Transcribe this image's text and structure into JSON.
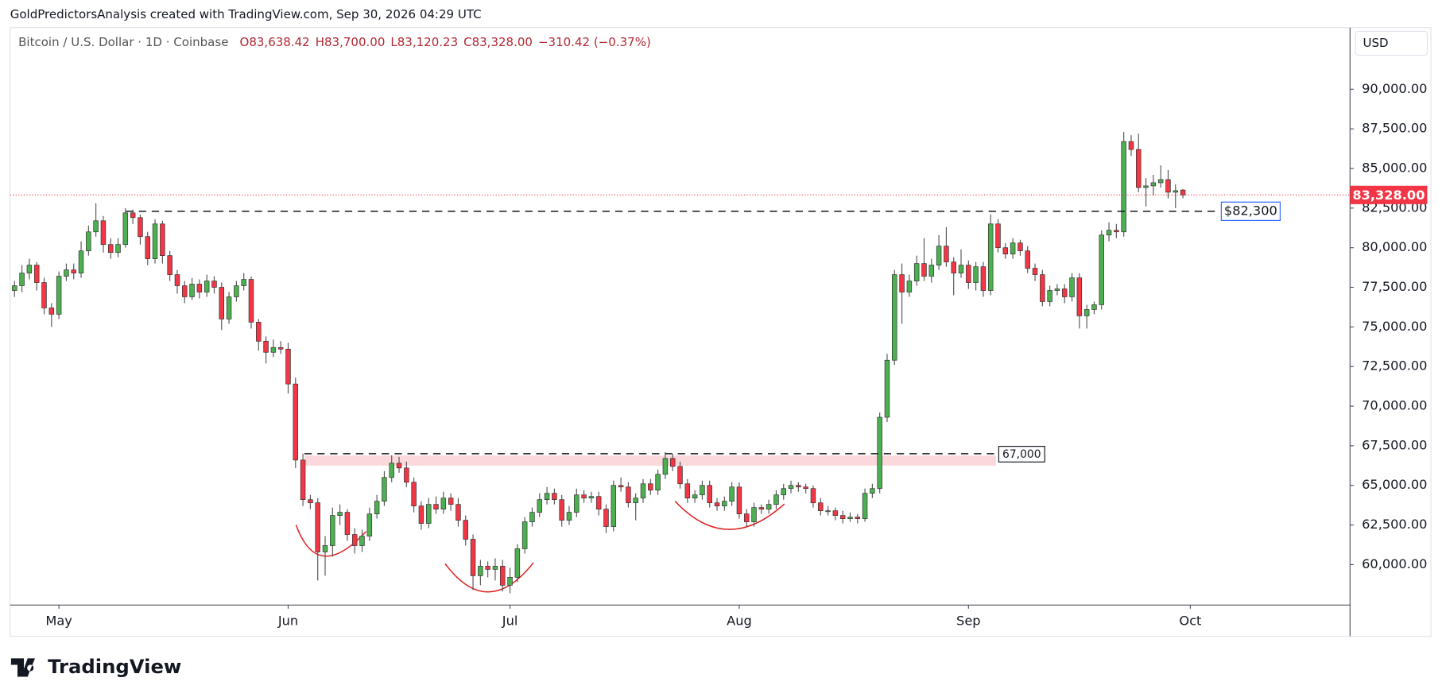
{
  "header": "GoldPredictorsAnalysis created with TradingView.com, Sep 30, 2026 04:29 UTC",
  "logo": "TradingView",
  "chart_data": {
    "type": "candlestick",
    "title": "Bitcoin / U.S. Dollar · 1D · Coinbase",
    "ohlc_labels": [
      "O83,638.42",
      "H83,700.00",
      "L83,120.23",
      "C83,328.00",
      "−310.42 (−0.37%)"
    ],
    "currency": "USD",
    "up_color": "#4caf50",
    "down_color": "#f23645",
    "ylim": [
      57450,
      93890
    ],
    "yticks": [
      {
        "value": 60000,
        "label": "60,000.00"
      },
      {
        "value": 62500,
        "label": "62,500.00"
      },
      {
        "value": 65000,
        "label": "65,000.00"
      },
      {
        "value": 67500,
        "label": "67,500.00"
      },
      {
        "value": 70000,
        "label": "70,000.00"
      },
      {
        "value": 72500,
        "label": "72,500.00"
      },
      {
        "value": 75000,
        "label": "75,000.00"
      },
      {
        "value": 77500,
        "label": "77,500.00"
      },
      {
        "value": 80000,
        "label": "80,000.00"
      },
      {
        "value": 82500,
        "label": "82,500.00"
      },
      {
        "value": 85000,
        "label": "85,000.00"
      },
      {
        "value": 87500,
        "label": "87,500.00"
      },
      {
        "value": 90000,
        "label": "90,000.00"
      }
    ],
    "xlim": [
      -0.6,
      180.6
    ],
    "xticks": [
      {
        "value": 6,
        "label": "May"
      },
      {
        "value": 37,
        "label": "Jun"
      },
      {
        "value": 67,
        "label": "Jul"
      },
      {
        "value": 98,
        "label": "Aug"
      },
      {
        "value": 129,
        "label": "Sep"
      },
      {
        "value": 159,
        "label": "Oct"
      }
    ],
    "last_price": {
      "value": 83328,
      "label": "83,328.00"
    },
    "levels": [
      {
        "value": 82300,
        "label": "$82,300"
      },
      {
        "value": 67000,
        "label": "67,000"
      }
    ],
    "candles": [
      [
        77300,
        77900,
        76900,
        77600
      ],
      [
        77600,
        78900,
        77200,
        78400
      ],
      [
        78400,
        79300,
        78000,
        78900
      ],
      [
        78900,
        79100,
        77300,
        77800
      ],
      [
        77800,
        78100,
        75800,
        76200
      ],
      [
        76200,
        76500,
        75000,
        75800
      ],
      [
        75800,
        78500,
        75500,
        78200
      ],
      [
        78200,
        79000,
        77900,
        78600
      ],
      [
        78600,
        79000,
        78000,
        78400
      ],
      [
        78400,
        80400,
        78100,
        79800
      ],
      [
        79800,
        81400,
        79500,
        81000
      ],
      [
        81000,
        82800,
        80700,
        81700
      ],
      [
        81700,
        82000,
        79700,
        80200
      ],
      [
        80200,
        80600,
        79300,
        79700
      ],
      [
        79700,
        80600,
        79400,
        80200
      ],
      [
        80200,
        82500,
        80000,
        82200
      ],
      [
        82200,
        82400,
        81500,
        81900
      ],
      [
        81900,
        82100,
        80200,
        80700
      ],
      [
        80700,
        81000,
        78900,
        79300
      ],
      [
        79300,
        81800,
        79000,
        81500
      ],
      [
        81500,
        81700,
        79000,
        79500
      ],
      [
        79500,
        79800,
        77900,
        78300
      ],
      [
        78300,
        78600,
        77100,
        77600
      ],
      [
        77600,
        77900,
        76500,
        76900
      ],
      [
        76900,
        78100,
        76700,
        77700
      ],
      [
        77700,
        78000,
        76800,
        77200
      ],
      [
        77200,
        78300,
        76900,
        77900
      ],
      [
        77900,
        78200,
        77100,
        77500
      ],
      [
        77500,
        77800,
        74800,
        75500
      ],
      [
        75500,
        77200,
        75200,
        76900
      ],
      [
        76900,
        77900,
        76600,
        77600
      ],
      [
        77600,
        78400,
        77300,
        78000
      ],
      [
        78000,
        78200,
        74900,
        75300
      ],
      [
        75300,
        75500,
        73500,
        74100
      ],
      [
        74100,
        74400,
        72700,
        73400
      ],
      [
        73400,
        74200,
        73100,
        73700
      ],
      [
        73700,
        74100,
        73300,
        73600
      ],
      [
        73600,
        74000,
        70800,
        71400
      ],
      [
        71400,
        71800,
        66100,
        66600
      ],
      [
        66600,
        67000,
        63700,
        64100
      ],
      [
        64100,
        64400,
        63500,
        63900
      ],
      [
        63900,
        64200,
        59000,
        60800
      ],
      [
        60800,
        61800,
        59300,
        61200
      ],
      [
        61200,
        63600,
        60500,
        63100
      ],
      [
        63100,
        63800,
        62500,
        63300
      ],
      [
        63300,
        63500,
        61500,
        61900
      ],
      [
        61900,
        62300,
        60700,
        61200
      ],
      [
        61200,
        62200,
        60800,
        61800
      ],
      [
        61800,
        63600,
        61500,
        63200
      ],
      [
        63200,
        64400,
        62900,
        64000
      ],
      [
        64000,
        65900,
        63700,
        65500
      ],
      [
        65500,
        66900,
        65200,
        66400
      ],
      [
        66400,
        66800,
        65800,
        66100
      ],
      [
        66100,
        66500,
        64900,
        65200
      ],
      [
        65200,
        65500,
        63300,
        63700
      ],
      [
        63700,
        64000,
        62200,
        62600
      ],
      [
        62600,
        64200,
        62300,
        63800
      ],
      [
        63800,
        64300,
        63200,
        63500
      ],
      [
        63500,
        64600,
        63200,
        64200
      ],
      [
        64200,
        64500,
        63400,
        63800
      ],
      [
        63800,
        64200,
        62400,
        62800
      ],
      [
        62800,
        63100,
        61200,
        61600
      ],
      [
        61600,
        61900,
        58400,
        59300
      ],
      [
        59300,
        60300,
        58700,
        59900
      ],
      [
        59900,
        60200,
        59200,
        59700
      ],
      [
        59700,
        60400,
        59000,
        59900
      ],
      [
        59900,
        60300,
        58300,
        58700
      ],
      [
        58700,
        59800,
        58200,
        59200
      ],
      [
        59200,
        61300,
        58900,
        61000
      ],
      [
        61000,
        63000,
        60700,
        62700
      ],
      [
        62700,
        63600,
        62400,
        63300
      ],
      [
        63300,
        64500,
        63000,
        64100
      ],
      [
        64100,
        64900,
        63800,
        64500
      ],
      [
        64500,
        64800,
        63800,
        64100
      ],
      [
        64100,
        64400,
        62400,
        62800
      ],
      [
        62800,
        63700,
        62500,
        63300
      ],
      [
        63300,
        64800,
        63000,
        64400
      ],
      [
        64400,
        64700,
        63900,
        64200
      ],
      [
        64200,
        64600,
        63900,
        64300
      ],
      [
        64300,
        64600,
        63100,
        63500
      ],
      [
        63500,
        63800,
        62000,
        62400
      ],
      [
        62400,
        65300,
        62100,
        65000
      ],
      [
        65000,
        65500,
        64600,
        64900
      ],
      [
        64900,
        65200,
        63600,
        63900
      ],
      [
        63900,
        64500,
        62800,
        64200
      ],
      [
        64200,
        65400,
        63900,
        65100
      ],
      [
        65100,
        65400,
        64400,
        64700
      ],
      [
        64700,
        66000,
        64400,
        65700
      ],
      [
        65700,
        67100,
        65400,
        66700
      ],
      [
        66700,
        67000,
        65900,
        66200
      ],
      [
        66200,
        66500,
        64800,
        65100
      ],
      [
        65100,
        65400,
        63900,
        64200
      ],
      [
        64200,
        64700,
        63900,
        64400
      ],
      [
        64400,
        65300,
        64100,
        65000
      ],
      [
        65000,
        65300,
        63600,
        63900
      ],
      [
        63900,
        64200,
        63400,
        63700
      ],
      [
        63700,
        64300,
        63400,
        64000
      ],
      [
        64000,
        65200,
        63700,
        64900
      ],
      [
        64900,
        65200,
        62900,
        63200
      ],
      [
        63200,
        63500,
        62400,
        62700
      ],
      [
        62700,
        63900,
        62400,
        63600
      ],
      [
        63600,
        63800,
        63200,
        63500
      ],
      [
        63500,
        64100,
        63200,
        63800
      ],
      [
        63800,
        64700,
        63500,
        64400
      ],
      [
        64400,
        65100,
        64100,
        64800
      ],
      [
        64800,
        65300,
        64500,
        65000
      ],
      [
        65000,
        65200,
        64600,
        64900
      ],
      [
        64900,
        65100,
        64500,
        64800
      ],
      [
        64800,
        65000,
        63600,
        63900
      ],
      [
        63900,
        64200,
        63100,
        63400
      ],
      [
        63400,
        63700,
        63100,
        63400
      ],
      [
        63400,
        63600,
        62800,
        63100
      ],
      [
        63100,
        63400,
        62600,
        62900
      ],
      [
        62900,
        63300,
        62700,
        63000
      ],
      [
        63000,
        63200,
        62600,
        62900
      ],
      [
        62900,
        64800,
        62700,
        64500
      ],
      [
        64500,
        65100,
        64200,
        64800
      ],
      [
        64800,
        69600,
        64500,
        69300
      ],
      [
        69300,
        73300,
        69000,
        72900
      ],
      [
        72900,
        78600,
        72600,
        78300
      ],
      [
        78300,
        79000,
        75200,
        77200
      ],
      [
        77200,
        78300,
        76900,
        77900
      ],
      [
        77900,
        79500,
        77600,
        79000
      ],
      [
        79000,
        80600,
        77900,
        78200
      ],
      [
        78200,
        79300,
        77800,
        78900
      ],
      [
        78900,
        80800,
        78600,
        80100
      ],
      [
        80100,
        81300,
        78800,
        79100
      ],
      [
        79100,
        79400,
        77000,
        78400
      ],
      [
        78400,
        79900,
        78100,
        78900
      ],
      [
        78900,
        79200,
        77400,
        77800
      ],
      [
        77800,
        79100,
        77300,
        78800
      ],
      [
        78800,
        79100,
        76900,
        77300
      ],
      [
        77300,
        82100,
        77000,
        81500
      ],
      [
        81500,
        81800,
        79700,
        80000
      ],
      [
        80000,
        80300,
        79300,
        79600
      ],
      [
        79600,
        80600,
        79300,
        80300
      ],
      [
        80300,
        80500,
        79500,
        79800
      ],
      [
        79800,
        80100,
        78400,
        78700
      ],
      [
        78700,
        79000,
        77900,
        78300
      ],
      [
        78300,
        78600,
        76300,
        76600
      ],
      [
        76600,
        77600,
        76300,
        77300
      ],
      [
        77300,
        77700,
        77000,
        77400
      ],
      [
        77400,
        77700,
        76500,
        76900
      ],
      [
        76900,
        78400,
        76600,
        78100
      ],
      [
        78100,
        78400,
        74900,
        75700
      ],
      [
        75700,
        76400,
        74900,
        76100
      ],
      [
        76100,
        76600,
        75800,
        76400
      ],
      [
        76400,
        81100,
        76100,
        80800
      ],
      [
        80800,
        81600,
        80400,
        81100
      ],
      [
        81100,
        81500,
        80600,
        81000
      ],
      [
        81000,
        87300,
        80700,
        86700
      ],
      [
        86700,
        87100,
        85800,
        86200
      ],
      [
        86200,
        87200,
        83500,
        83800
      ],
      [
        83800,
        84400,
        82600,
        83900
      ],
      [
        83900,
        84600,
        83300,
        84100
      ],
      [
        84100,
        85200,
        83800,
        84300
      ],
      [
        84300,
        84900,
        83100,
        83500
      ],
      [
        83500,
        84000,
        82500,
        83600
      ],
      [
        83638.42,
        83700,
        83120.23,
        83328
      ]
    ]
  }
}
